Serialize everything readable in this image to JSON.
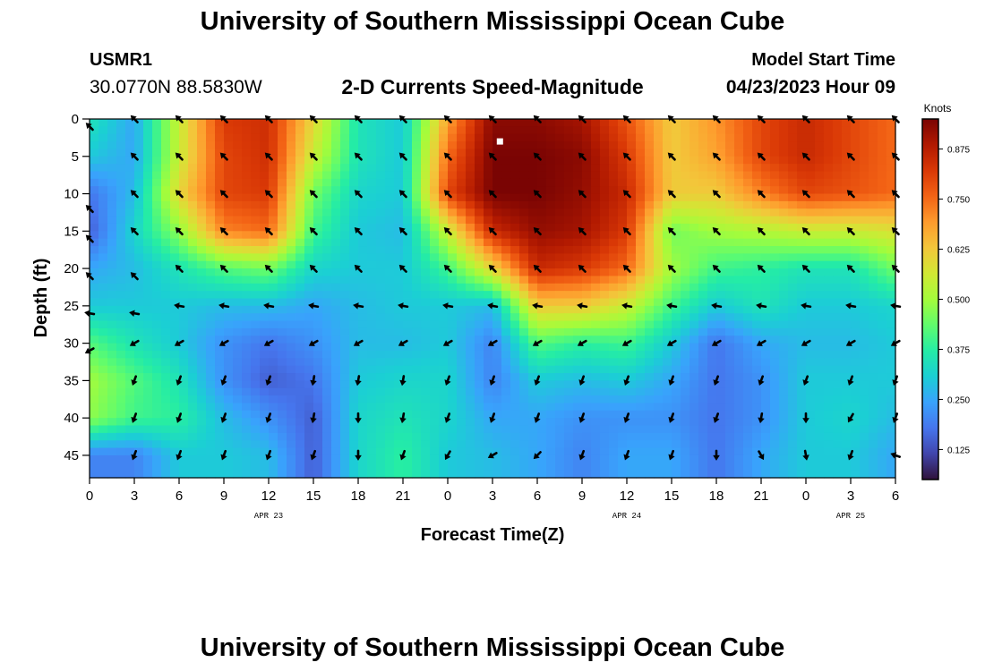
{
  "header": {
    "title": "University of Southern Mississippi Ocean Cube",
    "station_id": "USMR1",
    "station_coords": "30.0770N  88.5830W",
    "chart_heading": "2-D Currents Speed-Magnitude",
    "model_start_label": "Model Start Time",
    "model_start_value": "04/23/2023 Hour 09"
  },
  "footer": {
    "title": "University of Southern Mississippi Ocean Cube"
  },
  "chart_data": {
    "type": "heatmap",
    "title": "2-D Currents Speed-Magnitude",
    "xlabel": "Forecast Time(Z)",
    "ylabel": "Depth (ft)",
    "x_tick_labels": [
      "0",
      "3",
      "6",
      "9",
      "12",
      "15",
      "18",
      "21",
      "0",
      "3",
      "6",
      "9",
      "12",
      "15",
      "18",
      "21",
      "0",
      "3",
      "6"
    ],
    "x_hours": [
      0,
      3,
      6,
      9,
      12,
      15,
      18,
      21,
      24,
      27,
      30,
      33,
      36,
      39,
      42,
      45,
      48,
      51,
      54
    ],
    "xlim": [
      0,
      54
    ],
    "date_labels": [
      {
        "text": "APR 23",
        "hour": 12
      },
      {
        "text": "APR 24",
        "hour": 36
      },
      {
        "text": "APR 25",
        "hour": 51
      }
    ],
    "y_tick_labels": [
      "0",
      "5",
      "10",
      "15",
      "20",
      "25",
      "30",
      "35",
      "40",
      "45"
    ],
    "y_depths": [
      0,
      5,
      10,
      15,
      20,
      25,
      30,
      35,
      40,
      45
    ],
    "ylim": [
      0,
      48
    ],
    "colorbar": {
      "label": "Knots",
      "ticks": [
        "0.125",
        "0.250",
        "0.375",
        "0.500",
        "0.625",
        "0.750",
        "0.875"
      ],
      "tick_values": [
        0.125,
        0.25,
        0.375,
        0.5,
        0.625,
        0.75,
        0.875
      ],
      "range": [
        0.05,
        0.95
      ],
      "colors": [
        "#30123b",
        "#4145ab",
        "#4675ed",
        "#39a2fc",
        "#1bcfd4",
        "#24eca6",
        "#61fc6c",
        "#a4fc3b",
        "#d1e834",
        "#f3c63a",
        "#fe9b2d",
        "#f36315",
        "#d93806",
        "#b11901",
        "#7a0403"
      ]
    },
    "depths": [
      0,
      5,
      10,
      15,
      20,
      25,
      30,
      35,
      40,
      45
    ],
    "hours": [
      0,
      3,
      6,
      9,
      12,
      15,
      18,
      21,
      24,
      27,
      30,
      33,
      36,
      39,
      42,
      45,
      48,
      51,
      54
    ],
    "speed_knots": [
      [
        0.35,
        0.25,
        0.55,
        0.82,
        0.84,
        0.6,
        0.35,
        0.3,
        0.68,
        0.93,
        0.93,
        0.9,
        0.78,
        0.62,
        0.7,
        0.8,
        0.85,
        0.8,
        0.75
      ],
      [
        0.3,
        0.25,
        0.55,
        0.8,
        0.84,
        0.55,
        0.35,
        0.3,
        0.75,
        0.95,
        0.95,
        0.93,
        0.82,
        0.62,
        0.68,
        0.8,
        0.85,
        0.8,
        0.75
      ],
      [
        0.18,
        0.28,
        0.6,
        0.8,
        0.82,
        0.45,
        0.32,
        0.3,
        0.8,
        0.95,
        0.95,
        0.92,
        0.85,
        0.62,
        0.62,
        0.72,
        0.8,
        0.78,
        0.75
      ],
      [
        0.15,
        0.32,
        0.48,
        0.72,
        0.75,
        0.4,
        0.3,
        0.28,
        0.55,
        0.85,
        0.92,
        0.9,
        0.82,
        0.45,
        0.5,
        0.52,
        0.55,
        0.55,
        0.58
      ],
      [
        0.25,
        0.28,
        0.35,
        0.42,
        0.45,
        0.32,
        0.3,
        0.3,
        0.4,
        0.6,
        0.85,
        0.82,
        0.75,
        0.5,
        0.4,
        0.38,
        0.35,
        0.35,
        0.45
      ],
      [
        0.3,
        0.3,
        0.3,
        0.28,
        0.28,
        0.25,
        0.28,
        0.3,
        0.3,
        0.28,
        0.62,
        0.62,
        0.55,
        0.4,
        0.3,
        0.35,
        0.3,
        0.3,
        0.32
      ],
      [
        0.42,
        0.35,
        0.3,
        0.22,
        0.18,
        0.22,
        0.28,
        0.28,
        0.3,
        0.2,
        0.42,
        0.38,
        0.4,
        0.3,
        0.18,
        0.25,
        0.28,
        0.28,
        0.3
      ],
      [
        0.5,
        0.42,
        0.35,
        0.22,
        0.15,
        0.18,
        0.3,
        0.32,
        0.32,
        0.2,
        0.3,
        0.28,
        0.3,
        0.25,
        0.18,
        0.22,
        0.3,
        0.3,
        0.3
      ],
      [
        0.48,
        0.4,
        0.38,
        0.28,
        0.22,
        0.15,
        0.32,
        0.35,
        0.32,
        0.25,
        0.25,
        0.22,
        0.22,
        0.22,
        0.18,
        0.22,
        0.3,
        0.32,
        0.28
      ],
      [
        0.2,
        0.2,
        0.3,
        0.3,
        0.28,
        0.15,
        0.32,
        0.38,
        0.3,
        0.28,
        0.25,
        0.2,
        0.25,
        0.25,
        0.18,
        0.25,
        0.3,
        0.3,
        0.25
      ]
    ],
    "arrow_points": [
      {
        "hour": 0,
        "depth": 1
      },
      {
        "hour": 3,
        "depth": 0
      },
      {
        "hour": 6,
        "depth": 0
      },
      {
        "hour": 9,
        "depth": 0
      },
      {
        "hour": 12,
        "depth": 0
      },
      {
        "hour": 15,
        "depth": 0
      },
      {
        "hour": 18,
        "depth": 0
      },
      {
        "hour": 21,
        "depth": 0
      },
      {
        "hour": 24,
        "depth": 0
      },
      {
        "hour": 27,
        "depth": 0
      },
      {
        "hour": 30,
        "depth": 0
      },
      {
        "hour": 33,
        "depth": 0
      },
      {
        "hour": 36,
        "depth": 0
      },
      {
        "hour": 39,
        "depth": 0
      },
      {
        "hour": 42,
        "depth": 0
      },
      {
        "hour": 45,
        "depth": 0
      },
      {
        "hour": 48,
        "depth": 0
      },
      {
        "hour": 51,
        "depth": 0
      },
      {
        "hour": 54,
        "depth": 0
      },
      {
        "hour": 3,
        "depth": 5
      },
      {
        "hour": 6,
        "depth": 5
      },
      {
        "hour": 9,
        "depth": 5
      },
      {
        "hour": 12,
        "depth": 5
      },
      {
        "hour": 15,
        "depth": 5
      },
      {
        "hour": 18,
        "depth": 5
      },
      {
        "hour": 21,
        "depth": 5
      },
      {
        "hour": 24,
        "depth": 5
      },
      {
        "hour": 27,
        "depth": 5
      },
      {
        "hour": 30,
        "depth": 5
      },
      {
        "hour": 33,
        "depth": 5
      },
      {
        "hour": 36,
        "depth": 5
      },
      {
        "hour": 39,
        "depth": 5
      },
      {
        "hour": 42,
        "depth": 5
      },
      {
        "hour": 45,
        "depth": 5
      },
      {
        "hour": 48,
        "depth": 5
      },
      {
        "hour": 51,
        "depth": 5
      },
      {
        "hour": 54,
        "depth": 5
      },
      {
        "hour": 3,
        "depth": 10
      },
      {
        "hour": 6,
        "depth": 10
      },
      {
        "hour": 9,
        "depth": 10
      },
      {
        "hour": 12,
        "depth": 10
      },
      {
        "hour": 15,
        "depth": 10
      },
      {
        "hour": 18,
        "depth": 10
      },
      {
        "hour": 21,
        "depth": 10
      },
      {
        "hour": 24,
        "depth": 10
      },
      {
        "hour": 27,
        "depth": 10
      },
      {
        "hour": 30,
        "depth": 10
      },
      {
        "hour": 33,
        "depth": 10
      },
      {
        "hour": 36,
        "depth": 10
      },
      {
        "hour": 39,
        "depth": 10
      },
      {
        "hour": 42,
        "depth": 10
      },
      {
        "hour": 45,
        "depth": 10
      },
      {
        "hour": 48,
        "depth": 10
      },
      {
        "hour": 51,
        "depth": 10
      },
      {
        "hour": 54,
        "depth": 10
      },
      {
        "hour": 0,
        "depth": 12
      },
      {
        "hour": 0,
        "depth": 16
      },
      {
        "hour": 3,
        "depth": 15
      },
      {
        "hour": 6,
        "depth": 15
      },
      {
        "hour": 9,
        "depth": 15
      },
      {
        "hour": 12,
        "depth": 15
      },
      {
        "hour": 15,
        "depth": 15
      },
      {
        "hour": 18,
        "depth": 15
      },
      {
        "hour": 21,
        "depth": 15
      },
      {
        "hour": 24,
        "depth": 15
      },
      {
        "hour": 27,
        "depth": 15
      },
      {
        "hour": 30,
        "depth": 15
      },
      {
        "hour": 33,
        "depth": 15
      },
      {
        "hour": 36,
        "depth": 15
      },
      {
        "hour": 39,
        "depth": 15
      },
      {
        "hour": 42,
        "depth": 15
      },
      {
        "hour": 45,
        "depth": 15
      },
      {
        "hour": 48,
        "depth": 15
      },
      {
        "hour": 51,
        "depth": 15
      },
      {
        "hour": 54,
        "depth": 15
      },
      {
        "hour": 0,
        "depth": 21
      },
      {
        "hour": 3,
        "depth": 21
      },
      {
        "hour": 6,
        "depth": 20
      },
      {
        "hour": 9,
        "depth": 20
      },
      {
        "hour": 12,
        "depth": 20
      },
      {
        "hour": 15,
        "depth": 20
      },
      {
        "hour": 18,
        "depth": 20
      },
      {
        "hour": 21,
        "depth": 20
      },
      {
        "hour": 24,
        "depth": 20
      },
      {
        "hour": 27,
        "depth": 20
      },
      {
        "hour": 30,
        "depth": 20
      },
      {
        "hour": 33,
        "depth": 20
      },
      {
        "hour": 36,
        "depth": 20
      },
      {
        "hour": 39,
        "depth": 20
      },
      {
        "hour": 42,
        "depth": 20
      },
      {
        "hour": 45,
        "depth": 20
      },
      {
        "hour": 48,
        "depth": 20
      },
      {
        "hour": 51,
        "depth": 20
      },
      {
        "hour": 54,
        "depth": 20
      },
      {
        "hour": 0,
        "depth": 26
      },
      {
        "hour": 3,
        "depth": 26
      },
      {
        "hour": 6,
        "depth": 25
      },
      {
        "hour": 9,
        "depth": 25
      },
      {
        "hour": 12,
        "depth": 25
      },
      {
        "hour": 15,
        "depth": 25
      },
      {
        "hour": 18,
        "depth": 25
      },
      {
        "hour": 21,
        "depth": 25
      },
      {
        "hour": 24,
        "depth": 25
      },
      {
        "hour": 27,
        "depth": 25
      },
      {
        "hour": 30,
        "depth": 25
      },
      {
        "hour": 33,
        "depth": 25
      },
      {
        "hour": 36,
        "depth": 25
      },
      {
        "hour": 39,
        "depth": 25
      },
      {
        "hour": 42,
        "depth": 25
      },
      {
        "hour": 45,
        "depth": 25
      },
      {
        "hour": 48,
        "depth": 25
      },
      {
        "hour": 51,
        "depth": 25
      },
      {
        "hour": 54,
        "depth": 25
      },
      {
        "hour": 0,
        "depth": 31
      },
      {
        "hour": 3,
        "depth": 30
      },
      {
        "hour": 6,
        "depth": 30
      },
      {
        "hour": 9,
        "depth": 30
      },
      {
        "hour": 12,
        "depth": 30
      },
      {
        "hour": 15,
        "depth": 30
      },
      {
        "hour": 18,
        "depth": 30
      },
      {
        "hour": 21,
        "depth": 30
      },
      {
        "hour": 24,
        "depth": 30
      },
      {
        "hour": 27,
        "depth": 30
      },
      {
        "hour": 30,
        "depth": 30
      },
      {
        "hour": 33,
        "depth": 30
      },
      {
        "hour": 36,
        "depth": 30
      },
      {
        "hour": 39,
        "depth": 30
      },
      {
        "hour": 42,
        "depth": 30
      },
      {
        "hour": 45,
        "depth": 30
      },
      {
        "hour": 48,
        "depth": 30
      },
      {
        "hour": 51,
        "depth": 30
      },
      {
        "hour": 54,
        "depth": 30
      },
      {
        "hour": 3,
        "depth": 35
      },
      {
        "hour": 6,
        "depth": 35
      },
      {
        "hour": 9,
        "depth": 35
      },
      {
        "hour": 12,
        "depth": 35
      },
      {
        "hour": 15,
        "depth": 35
      },
      {
        "hour": 18,
        "depth": 35
      },
      {
        "hour": 21,
        "depth": 35
      },
      {
        "hour": 24,
        "depth": 35
      },
      {
        "hour": 27,
        "depth": 35
      },
      {
        "hour": 30,
        "depth": 35
      },
      {
        "hour": 33,
        "depth": 35
      },
      {
        "hour": 36,
        "depth": 35
      },
      {
        "hour": 39,
        "depth": 35
      },
      {
        "hour": 42,
        "depth": 35
      },
      {
        "hour": 45,
        "depth": 35
      },
      {
        "hour": 48,
        "depth": 35
      },
      {
        "hour": 51,
        "depth": 35
      },
      {
        "hour": 54,
        "depth": 35
      },
      {
        "hour": 3,
        "depth": 40
      },
      {
        "hour": 6,
        "depth": 40
      },
      {
        "hour": 9,
        "depth": 40
      },
      {
        "hour": 12,
        "depth": 40
      },
      {
        "hour": 15,
        "depth": 40
      },
      {
        "hour": 18,
        "depth": 40
      },
      {
        "hour": 21,
        "depth": 40
      },
      {
        "hour": 24,
        "depth": 40
      },
      {
        "hour": 27,
        "depth": 40
      },
      {
        "hour": 30,
        "depth": 40
      },
      {
        "hour": 33,
        "depth": 40
      },
      {
        "hour": 36,
        "depth": 40
      },
      {
        "hour": 39,
        "depth": 40
      },
      {
        "hour": 42,
        "depth": 40
      },
      {
        "hour": 45,
        "depth": 40
      },
      {
        "hour": 48,
        "depth": 40
      },
      {
        "hour": 51,
        "depth": 40
      },
      {
        "hour": 54,
        "depth": 40
      },
      {
        "hour": 3,
        "depth": 45
      },
      {
        "hour": 6,
        "depth": 45
      },
      {
        "hour": 9,
        "depth": 45
      },
      {
        "hour": 12,
        "depth": 45
      },
      {
        "hour": 15,
        "depth": 45
      },
      {
        "hour": 18,
        "depth": 45
      },
      {
        "hour": 21,
        "depth": 45
      },
      {
        "hour": 24,
        "depth": 45
      },
      {
        "hour": 27,
        "depth": 45
      },
      {
        "hour": 30,
        "depth": 45
      },
      {
        "hour": 33,
        "depth": 45
      },
      {
        "hour": 36,
        "depth": 45
      },
      {
        "hour": 39,
        "depth": 45
      },
      {
        "hour": 42,
        "depth": 45
      },
      {
        "hour": 45,
        "depth": 45
      },
      {
        "hour": 48,
        "depth": 45
      },
      {
        "hour": 51,
        "depth": 45
      },
      {
        "hour": 54,
        "depth": 45
      }
    ],
    "arrow_direction_by_depth": [
      {
        "max_depth": 22,
        "angle_deg": 225
      },
      {
        "max_depth": 27,
        "angle_deg": 190
      },
      {
        "max_depth": 33,
        "angle_deg": 150
      },
      {
        "max_depth": 48,
        "angle_deg": 110
      }
    ],
    "arrow_direction_overrides": [
      {
        "hour": 15,
        "depth": 35,
        "angle_deg": 100
      },
      {
        "hour": 15,
        "depth": 40,
        "angle_deg": 100
      },
      {
        "hour": 15,
        "depth": 45,
        "angle_deg": 110
      },
      {
        "hour": 18,
        "depth": 35,
        "angle_deg": 100
      },
      {
        "hour": 18,
        "depth": 40,
        "angle_deg": 90
      },
      {
        "hour": 18,
        "depth": 45,
        "angle_deg": 90
      },
      {
        "hour": 21,
        "depth": 35,
        "angle_deg": 100
      },
      {
        "hour": 21,
        "depth": 40,
        "angle_deg": 100
      },
      {
        "hour": 21,
        "depth": 45,
        "angle_deg": 110
      },
      {
        "hour": 24,
        "depth": 45,
        "angle_deg": 120
      },
      {
        "hour": 27,
        "depth": 45,
        "angle_deg": 150
      },
      {
        "hour": 30,
        "depth": 45,
        "angle_deg": 135
      },
      {
        "hour": 33,
        "depth": 45,
        "angle_deg": 110
      },
      {
        "hour": 42,
        "depth": 45,
        "angle_deg": 90
      },
      {
        "hour": 45,
        "depth": 45,
        "angle_deg": 60
      },
      {
        "hour": 48,
        "depth": 45,
        "angle_deg": 80
      },
      {
        "hour": 48,
        "depth": 40,
        "angle_deg": 90
      },
      {
        "hour": 45,
        "depth": 40,
        "angle_deg": 100
      },
      {
        "hour": 51,
        "depth": 40,
        "angle_deg": 120
      },
      {
        "hour": 54,
        "depth": 45,
        "angle_deg": 200
      }
    ],
    "marker": {
      "hour": 27.5,
      "depth": 3
    }
  }
}
